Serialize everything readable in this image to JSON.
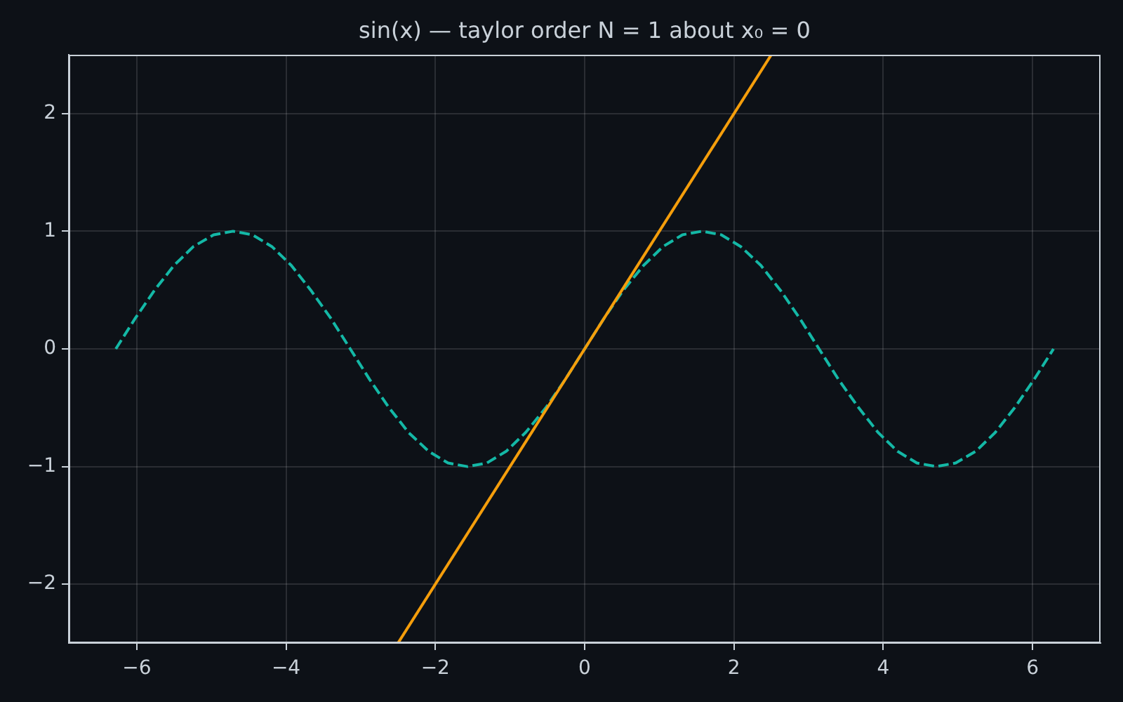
{
  "chart_data": {
    "type": "line",
    "title": "sin(x) — taylor order N = 1 about x₀ = 0",
    "xlim": [
      -6.91,
      6.91
    ],
    "xticks": [
      {
        "value": -6,
        "label": "−6"
      },
      {
        "value": -4,
        "label": "−4"
      },
      {
        "value": -2,
        "label": "−2"
      },
      0,
      2,
      4,
      6
    ],
    "ylim": [
      -2.5,
      2.5
    ],
    "yticks": [
      {
        "value": -2,
        "label": "−2"
      },
      {
        "value": -1,
        "label": "−1"
      },
      0,
      1,
      2
    ],
    "grid": true,
    "series": [
      {
        "color": "#14b8a6",
        "line_style": "dashed",
        "x": [
          -6.28,
          -6.02,
          -5.76,
          -5.5,
          -5.24,
          -4.97,
          -4.71,
          -4.45,
          -4.19,
          -3.93,
          -3.67,
          -3.4,
          -3.14,
          -2.88,
          -2.62,
          -2.36,
          -2.09,
          -1.83,
          -1.57,
          -1.31,
          -1.05,
          -0.79,
          -0.52,
          -0.26,
          0,
          0.26,
          0.52,
          0.79,
          1.05,
          1.31,
          1.57,
          1.83,
          2.09,
          2.36,
          2.62,
          2.88,
          3.14,
          3.4,
          3.67,
          3.93,
          4.19,
          4.45,
          4.71,
          4.97,
          5.24,
          5.5,
          5.76,
          6.02,
          6.28
        ],
        "values": [
          0,
          0.26,
          0.5,
          0.71,
          0.87,
          0.97,
          1,
          0.97,
          0.87,
          0.71,
          0.5,
          0.26,
          0,
          -0.26,
          -0.5,
          -0.71,
          -0.87,
          -0.97,
          -1,
          -0.97,
          -0.87,
          -0.71,
          -0.5,
          -0.26,
          0,
          0.26,
          0.5,
          0.71,
          0.87,
          0.97,
          1,
          0.97,
          0.87,
          0.71,
          0.5,
          0.26,
          0,
          -0.26,
          -0.5,
          -0.71,
          -0.87,
          -0.97,
          -1,
          -0.97,
          -0.87,
          -0.71,
          -0.5,
          -0.26,
          0
        ]
      },
      {
        "color": "#f59e0b",
        "line_style": "solid",
        "x": [
          -2.5,
          2.5
        ],
        "values": [
          -2.5,
          2.5
        ]
      }
    ]
  }
}
